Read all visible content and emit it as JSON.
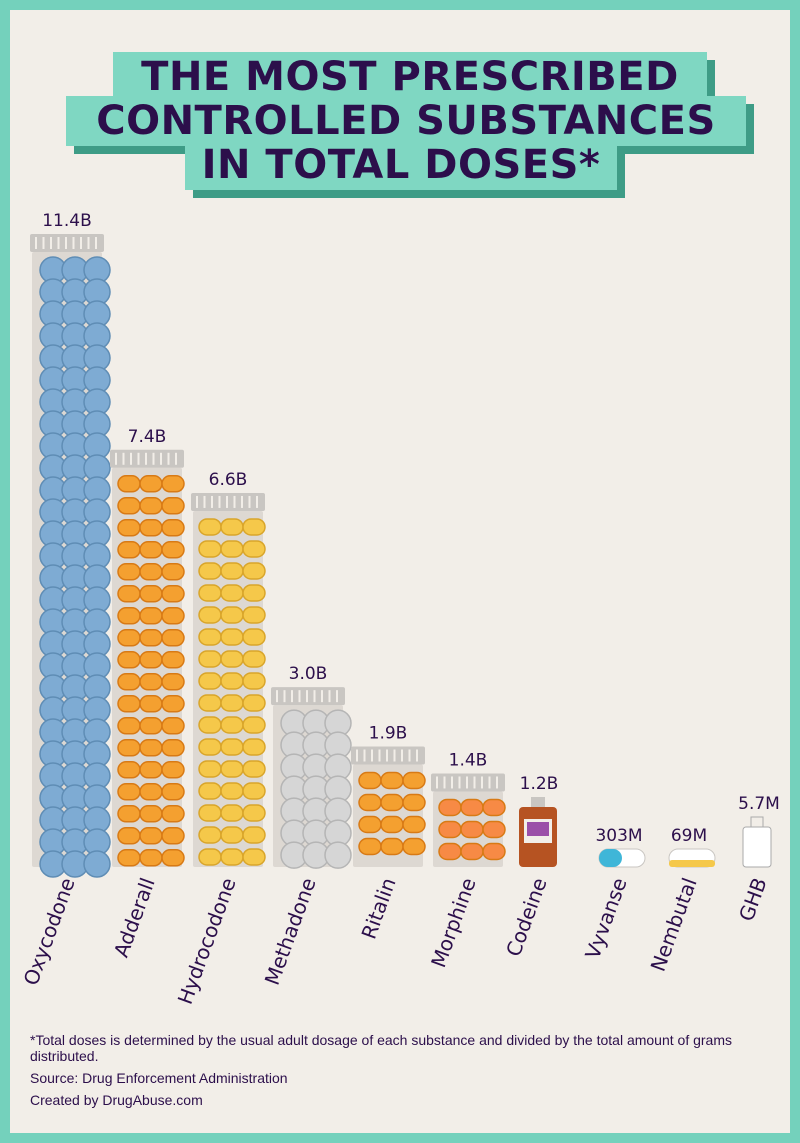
{
  "title": {
    "lines": [
      "THE MOST PRESCRIBED",
      "CONTROLLED SUBSTANCES",
      "IN TOTAL DOSES*"
    ]
  },
  "chart_data": {
    "type": "bar",
    "title": "The Most Prescribed Controlled Substances in Total Doses*",
    "unit": "doses",
    "categories": [
      "Oxycodone",
      "Adderall",
      "Hydrocodone",
      "Methadone",
      "Ritalin",
      "Morphine",
      "Codeine",
      "Vyvanse",
      "Nembutal",
      "GHB"
    ],
    "values": [
      11400000000,
      7400000000,
      6600000000,
      3000000000,
      1900000000,
      1400000000,
      1200000000,
      303000000,
      69000000,
      5700000
    ],
    "value_labels": [
      "11.4B",
      "7.4B",
      "6.6B",
      "3.0B",
      "1.9B",
      "1.4B",
      "1.2B",
      "303M",
      "69M",
      "5.7M"
    ],
    "xlabel": "",
    "ylabel": "",
    "colors": {
      "Oxycodone": "#7eabd3",
      "Adderall": "#f4a030",
      "Hydrocodone": "#f5c84a",
      "Methadone": "#d6d6d6",
      "Ritalin": "#f4a030",
      "Morphine": "#f78a45",
      "Codeine": "#b65322",
      "Vyvanse": "#3fb6d8",
      "Nembutal": "#f5c84a",
      "GHB": "#ffffff"
    }
  },
  "footnote": "*Total doses is determined by the usual adult dosage of each substance and divided by the total amount of grams distributed.",
  "source": "Source: Drug Enforcement Administration",
  "credit": "Created by DrugAbuse.com",
  "colors": {
    "border": "#74d1bc",
    "background": "#f2eee8",
    "title_text": "#2c0f4b",
    "title_band": "#7fd7c2",
    "title_shadow": "#3e9c86",
    "jar": "#ddd8d2",
    "lid": "#c9c6c2"
  }
}
